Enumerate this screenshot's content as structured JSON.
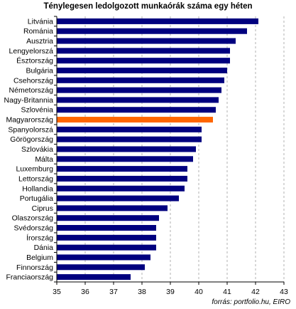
{
  "chart_data": {
    "type": "bar",
    "orientation": "horizontal",
    "title": "Ténylegesen ledolgozott munkaórák száma egy héten",
    "source": "forrás: portfolio.hu, EIRO",
    "categories": [
      "Litvánia",
      "Románia",
      "Ausztria",
      "Lengyelorszá",
      "Észtország",
      "Bulgária",
      "Csehország",
      "Németország",
      "Nagy-Britannia",
      "Szlovénia",
      "Magyarország",
      "Spanyolorszá",
      "Görögország",
      "Szlovákia",
      "Málta",
      "Luxemburg",
      "Lettország",
      "Hollandia",
      "Portugália",
      "Ciprus",
      "Olaszország",
      "Svédország",
      "Írország",
      "Dánia",
      "Belgium",
      "Finnország",
      "Franciaország"
    ],
    "values": [
      42.1,
      41.7,
      41.3,
      41.1,
      41.1,
      41.0,
      40.9,
      40.8,
      40.7,
      40.6,
      40.5,
      40.1,
      40.1,
      39.9,
      39.8,
      39.6,
      39.6,
      39.5,
      39.3,
      38.9,
      38.6,
      38.5,
      38.5,
      38.5,
      38.3,
      38.1,
      37.6
    ],
    "highlight": "Magyarország",
    "colors": {
      "bar": "#00007f",
      "highlight": "#ff6600",
      "grid": "#b0b0b0"
    },
    "xlim": [
      35,
      43
    ],
    "xticks": [
      35,
      36,
      37,
      38,
      39,
      40,
      41,
      42,
      43
    ],
    "grid": "vertical dashed"
  }
}
